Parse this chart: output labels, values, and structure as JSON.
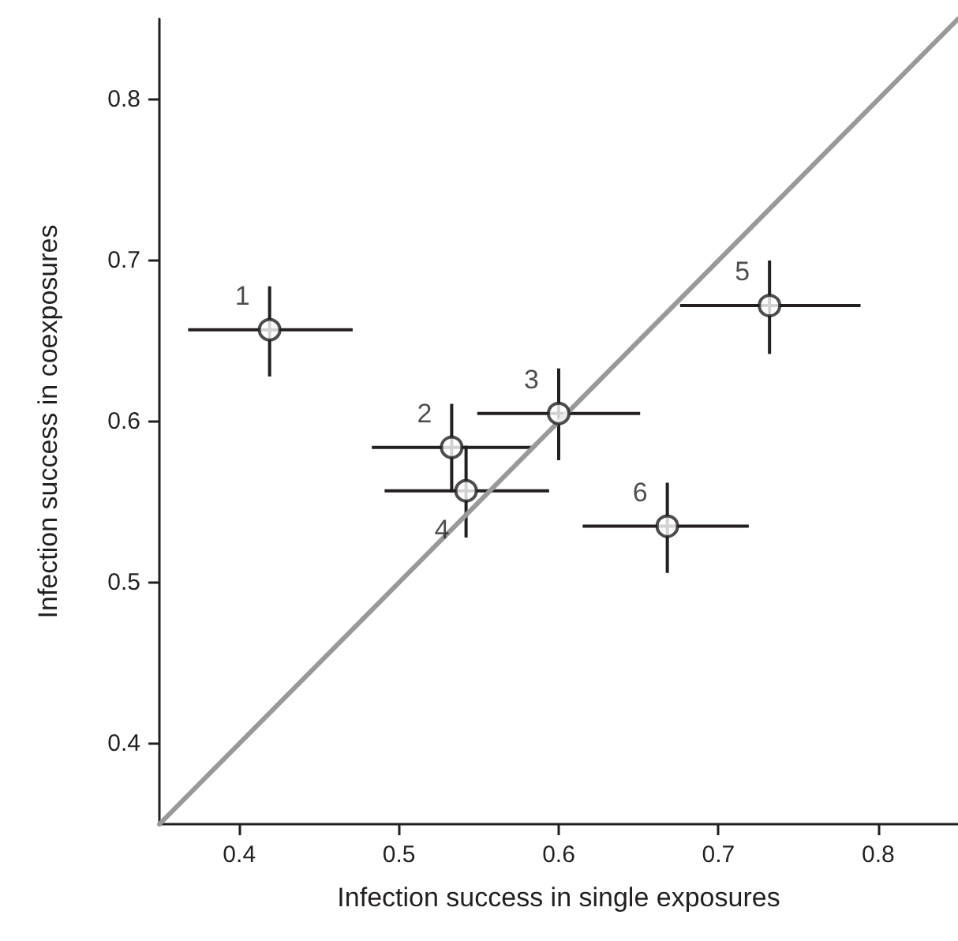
{
  "chart_data": {
    "type": "scatter",
    "xlabel": "Infection success in single exposures",
    "ylabel": "Infection success in coexposures",
    "xlim": [
      0.35,
      0.85
    ],
    "ylim": [
      0.35,
      0.85
    ],
    "xticks": [
      0.4,
      0.5,
      0.6,
      0.7,
      0.8
    ],
    "yticks": [
      0.4,
      0.5,
      0.6,
      0.7,
      0.8
    ],
    "grid": false,
    "marker": "circle",
    "series": [
      {
        "type": "line",
        "color": "#999999",
        "x": [
          0.35,
          0.85
        ],
        "values": [
          0.35,
          0.85
        ],
        "marker": "none"
      },
      {
        "color": "#231f20",
        "x": [
          0.419,
          0.533,
          0.6,
          0.542,
          0.732,
          0.668
        ],
        "values": [
          0.657,
          0.584,
          0.605,
          0.557,
          0.672,
          0.535
        ],
        "errors": [
          [
            0.628,
            0.684
          ],
          [
            0.556,
            0.611
          ],
          [
            0.576,
            0.633
          ],
          [
            0.528,
            0.585
          ],
          [
            0.642,
            0.7
          ],
          [
            0.506,
            0.562
          ]
        ],
        "xerrors": [
          [
            0.368,
            0.471
          ],
          [
            0.483,
            0.584
          ],
          [
            0.549,
            0.651
          ],
          [
            0.491,
            0.594
          ],
          [
            0.676,
            0.789
          ],
          [
            0.615,
            0.719
          ]
        ]
      }
    ],
    "annotations": [
      {
        "text": "1",
        "x": 0.419,
        "y": 0.657
      },
      {
        "text": "2",
        "x": 0.533,
        "y": 0.584
      },
      {
        "text": "3",
        "x": 0.6,
        "y": 0.605
      },
      {
        "text": "4",
        "x": 0.542,
        "y": 0.557
      },
      {
        "text": "5",
        "x": 0.732,
        "y": 0.672
      },
      {
        "text": "6",
        "x": 0.668,
        "y": 0.535
      }
    ]
  }
}
